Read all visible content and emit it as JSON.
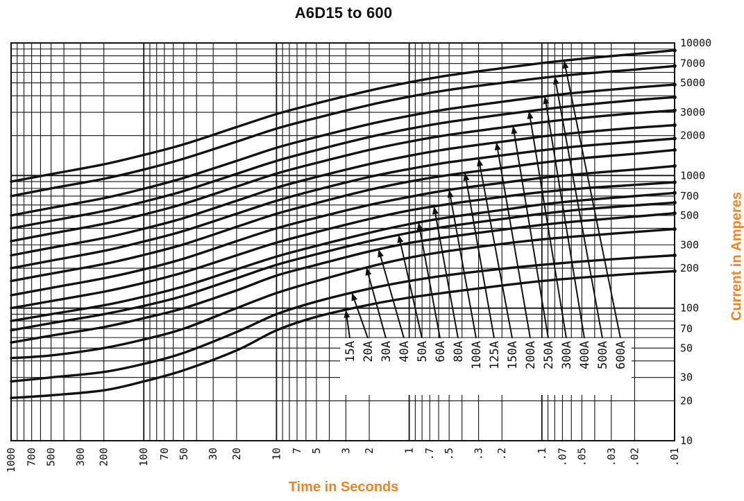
{
  "chart_data": {
    "type": "line",
    "title": "A6D15 to 600",
    "xlabel": "Time in Seconds",
    "ylabel": "Current in Amperes",
    "x_scale": "log",
    "y_scale": "log",
    "xlim": [
      1000,
      0.01
    ],
    "ylim": [
      10,
      10000
    ],
    "x_ticks": [
      "1000",
      "700",
      "500",
      "300",
      "200",
      "100",
      "70",
      "50",
      "30",
      "20",
      "10",
      "7",
      "5",
      "3",
      "2",
      "1",
      ".7",
      ".5",
      ".3",
      ".2",
      ".1",
      ".07",
      ".05",
      ".03",
      ".02",
      ".01"
    ],
    "y_ticks": [
      "10000",
      "7000",
      "5000",
      "3000",
      "2000",
      "1000",
      "700",
      "500",
      "300",
      "200",
      "100",
      "70",
      "50",
      "30",
      "20",
      "10"
    ],
    "grid": true,
    "series_labels": [
      "15A",
      "20A",
      "30A",
      "40A",
      "50A",
      "60A",
      "80A",
      "100A",
      "125A",
      "150A",
      "200A",
      "250A",
      "300A",
      "400A",
      "500A",
      "600A"
    ],
    "series": [
      {
        "name": "15A",
        "x": [
          1000,
          500,
          200,
          100,
          50,
          20,
          10,
          5,
          2,
          1,
          0.5,
          0.2,
          0.1,
          0.05,
          0.02,
          0.01
        ],
        "y": [
          21,
          22,
          24,
          28,
          34,
          48,
          68,
          86,
          106,
          120,
          132,
          148,
          160,
          170,
          182,
          190
        ]
      },
      {
        "name": "20A",
        "x": [
          1000,
          500,
          200,
          100,
          50,
          20,
          10,
          5,
          2,
          1,
          0.5,
          0.2,
          0.1,
          0.05,
          0.02,
          0.01
        ],
        "y": [
          28,
          30,
          33,
          38,
          46,
          66,
          90,
          112,
          140,
          160,
          178,
          198,
          212,
          225,
          240,
          250
        ]
      },
      {
        "name": "30A",
        "x": [
          1000,
          500,
          200,
          100,
          50,
          20,
          10,
          5,
          2,
          1,
          0.5,
          0.2,
          0.1,
          0.05,
          0.02,
          0.01
        ],
        "y": [
          42,
          44,
          50,
          58,
          70,
          100,
          130,
          160,
          205,
          240,
          270,
          305,
          330,
          350,
          375,
          395
        ]
      },
      {
        "name": "40A",
        "x": [
          1000,
          500,
          200,
          100,
          50,
          20,
          10,
          5,
          2,
          1,
          0.5,
          0.2,
          0.1,
          0.05,
          0.02,
          0.01
        ],
        "y": [
          55,
          62,
          72,
          84,
          100,
          136,
          176,
          212,
          268,
          310,
          345,
          390,
          425,
          455,
          490,
          520
        ]
      },
      {
        "name": "50A",
        "x": [
          1000,
          500,
          200,
          100,
          50,
          20,
          10,
          5,
          2,
          1,
          0.5,
          0.2,
          0.1,
          0.05,
          0.02,
          0.01
        ],
        "y": [
          68,
          77,
          90,
          104,
          124,
          168,
          212,
          255,
          320,
          370,
          415,
          470,
          515,
          555,
          595,
          625
        ]
      },
      {
        "name": "60A",
        "x": [
          1000,
          500,
          200,
          100,
          50,
          20,
          10,
          5,
          2,
          1,
          0.5,
          0.2,
          0.1,
          0.05,
          0.02,
          0.01
        ],
        "y": [
          80,
          90,
          105,
          122,
          146,
          196,
          245,
          295,
          370,
          430,
          485,
          550,
          605,
          650,
          700,
          740
        ]
      },
      {
        "name": "80A",
        "x": [
          1000,
          500,
          200,
          100,
          50,
          20,
          10,
          5,
          2,
          1,
          0.5,
          0.2,
          0.1,
          0.05,
          0.02,
          0.01
        ],
        "y": [
          100,
          113,
          133,
          155,
          186,
          250,
          312,
          375,
          470,
          545,
          610,
          690,
          750,
          800,
          850,
          890
        ]
      },
      {
        "name": "100A",
        "x": [
          1000,
          500,
          200,
          100,
          50,
          20,
          10,
          5,
          2,
          1,
          0.5,
          0.2,
          0.1,
          0.05,
          0.02,
          0.01
        ],
        "y": [
          125,
          142,
          168,
          196,
          236,
          320,
          400,
          480,
          600,
          690,
          780,
          880,
          960,
          1030,
          1110,
          1180
        ]
      },
      {
        "name": "125A",
        "x": [
          1000,
          500,
          200,
          100,
          50,
          20,
          10,
          5,
          2,
          1,
          0.5,
          0.2,
          0.1,
          0.05,
          0.02,
          0.01
        ],
        "y": [
          160,
          182,
          215,
          252,
          303,
          410,
          515,
          620,
          780,
          900,
          1010,
          1140,
          1250,
          1350,
          1460,
          1560
        ]
      },
      {
        "name": "150A",
        "x": [
          1000,
          500,
          200,
          100,
          50,
          20,
          10,
          5,
          2,
          1,
          0.5,
          0.2,
          0.1,
          0.05,
          0.02,
          0.01
        ],
        "y": [
          200,
          228,
          270,
          318,
          382,
          515,
          645,
          780,
          975,
          1120,
          1260,
          1420,
          1550,
          1670,
          1800,
          1900
        ]
      },
      {
        "name": "200A",
        "x": [
          1000,
          500,
          200,
          100,
          50,
          20,
          10,
          5,
          2,
          1,
          0.5,
          0.2,
          0.1,
          0.05,
          0.02,
          0.01
        ],
        "y": [
          250,
          285,
          338,
          397,
          478,
          645,
          810,
          975,
          1220,
          1410,
          1590,
          1800,
          1970,
          2120,
          2290,
          2400
        ]
      },
      {
        "name": "250A",
        "x": [
          1000,
          500,
          200,
          100,
          50,
          20,
          10,
          5,
          2,
          1,
          0.5,
          0.2,
          0.1,
          0.05,
          0.02,
          0.01
        ],
        "y": [
          320,
          365,
          432,
          508,
          612,
          825,
          1035,
          1245,
          1560,
          1800,
          2030,
          2300,
          2520,
          2720,
          2950,
          3100
        ]
      },
      {
        "name": "300A",
        "x": [
          1000,
          500,
          200,
          100,
          50,
          20,
          10,
          5,
          2,
          1,
          0.5,
          0.2,
          0.1,
          0.05,
          0.02,
          0.01
        ],
        "y": [
          400,
          455,
          540,
          635,
          765,
          1030,
          1290,
          1555,
          1950,
          2250,
          2540,
          2880,
          3150,
          3400,
          3700,
          3900
        ]
      },
      {
        "name": "400A",
        "x": [
          1000,
          500,
          200,
          100,
          50,
          20,
          10,
          5,
          2,
          1,
          0.5,
          0.2,
          0.1,
          0.05,
          0.02,
          0.01
        ],
        "y": [
          500,
          570,
          675,
          795,
          960,
          1290,
          1620,
          1950,
          2440,
          2820,
          3180,
          3600,
          3940,
          4250,
          4600,
          4850
        ]
      },
      {
        "name": "500A",
        "x": [
          1000,
          500,
          200,
          100,
          50,
          20,
          10,
          5,
          2,
          1,
          0.5,
          0.2,
          0.1,
          0.05,
          0.02,
          0.01
        ],
        "y": [
          700,
          800,
          945,
          1110,
          1340,
          1800,
          2260,
          2720,
          3400,
          3930,
          4430,
          5000,
          5450,
          5850,
          6300,
          6700
        ]
      },
      {
        "name": "600A",
        "x": [
          1000,
          500,
          200,
          100,
          50,
          20,
          10,
          5,
          2,
          1,
          0.5,
          0.2,
          0.1,
          0.05,
          0.02,
          0.01
        ],
        "y": [
          900,
          1025,
          1215,
          1430,
          1720,
          2320,
          2910,
          3500,
          4370,
          5050,
          5700,
          6450,
          7050,
          7600,
          8250,
          8800
        ]
      }
    ]
  }
}
